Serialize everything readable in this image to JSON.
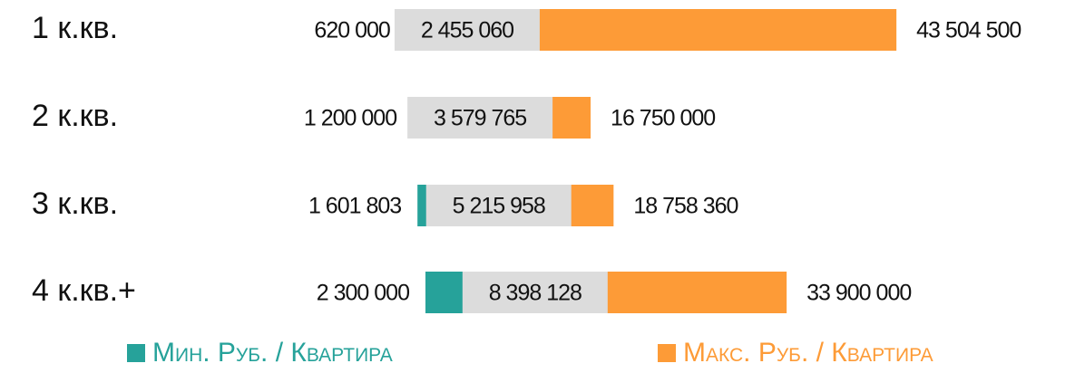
{
  "chart_data": {
    "type": "range_bar",
    "categories": [
      "1 к.кв.",
      "2 к.кв.",
      "3 к.кв.",
      "4 к.кв.+"
    ],
    "series": [
      {
        "name": "Мин. Руб. / Квартира",
        "color": "#26a29a",
        "values": [
          620000,
          1200000,
          1601803,
          2300000
        ],
        "value_labels": [
          "620 000",
          "1 200 000",
          "1 601 803",
          "2 300 000"
        ]
      },
      {
        "name": "Макс. Руб. / Квартира",
        "color": "#fd9b37",
        "values": [
          43504500,
          16750000,
          18758360,
          33900000
        ],
        "value_labels": [
          "43 504 500",
          "16 750 000",
          "18 758 360",
          "33 900 000"
        ]
      }
    ],
    "center_values": [
      2455060,
      3579765,
      5215958,
      8398128
    ],
    "center_value_labels": [
      "2 455 060",
      "3 579 765",
      "5 215 958",
      "8 398 128"
    ],
    "center_color": "#dcdcdc",
    "xlim": [
      0,
      45000000
    ]
  }
}
